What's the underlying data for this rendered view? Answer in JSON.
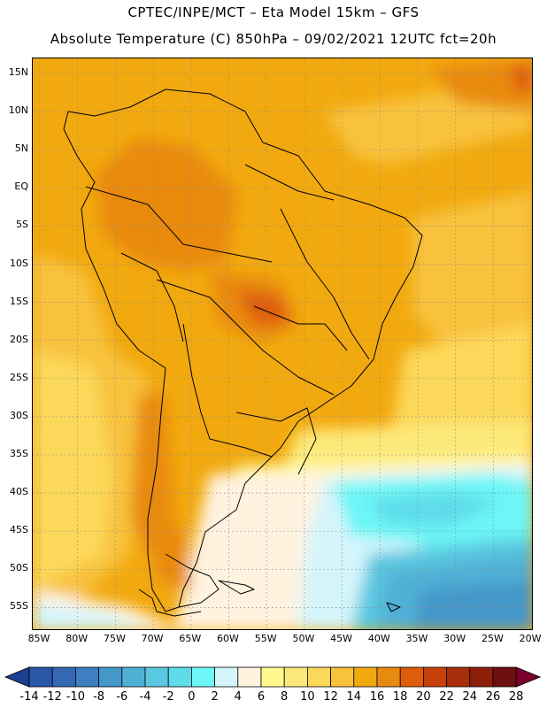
{
  "header": {
    "line1": "CPTEC/INPE/MCT –  Eta Model 15km – GFS",
    "line2": "Absolute Temperature (C) 850hPa – 09/02/2021 12UTC fct=20h"
  },
  "map": {
    "lat_labels": [
      "15N",
      "10N",
      "5N",
      "EQ",
      "5S",
      "10S",
      "15S",
      "20S",
      "25S",
      "30S",
      "35S",
      "40S",
      "45S",
      "50S",
      "55S"
    ],
    "lon_labels": [
      "85W",
      "80W",
      "75W",
      "70W",
      "65W",
      "60W",
      "55W",
      "50W",
      "45W",
      "40W",
      "35W",
      "30W",
      "25W",
      "20W"
    ]
  },
  "colorbar": {
    "labels": [
      "-14",
      "-12",
      "-10",
      "-8",
      "-6",
      "-4",
      "-2",
      "0",
      "2",
      "4",
      "6",
      "8",
      "10",
      "12",
      "14",
      "16",
      "18",
      "20",
      "22",
      "24",
      "26",
      "28"
    ],
    "colors": [
      "#1c3f8f",
      "#2a56a8",
      "#3567b3",
      "#3d7fc0",
      "#4497c9",
      "#4fb0d6",
      "#5ac8e0",
      "#5fdcea",
      "#6cf6f6",
      "#d4f5fb",
      "#fff3e0",
      "#fff98e",
      "#fde97a",
      "#fcd85a",
      "#f8c23c",
      "#f2a90f",
      "#e98a10",
      "#de5c0a",
      "#c8400a",
      "#a82d0a",
      "#8c1f0a",
      "#6e1010",
      "#7a0030"
    ]
  }
}
